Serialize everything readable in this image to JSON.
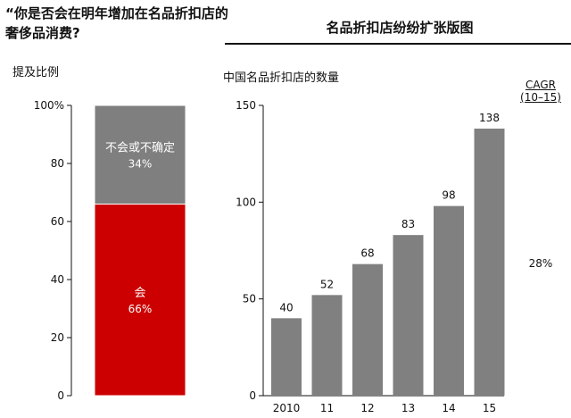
{
  "left_panel": {
    "question": "“你是否会在明年增加在名品折扣店的奢侈品消费?",
    "axis_title": "提及比例",
    "yticks": [
      "100%",
      "80",
      "60",
      "40",
      "20",
      "0"
    ]
  },
  "right_panel": {
    "title": "名品折扣店纷纷扩张版图",
    "subtitle": "中国名品折扣店的数量",
    "cagr_label": "CAGR",
    "cagr_period": "(10–15)",
    "cagr_value": "28%",
    "yticks": [
      "150",
      "100",
      "50",
      "0"
    ]
  },
  "colors": {
    "undecided": "#7f7f7f",
    "will": "#cc0000",
    "bar": "#808080"
  },
  "chart_data": [
    {
      "type": "bar",
      "title": "“你是否会在明年增加在名品折扣店的奢侈品消费?",
      "ylabel": "提及比例",
      "ylim": [
        0,
        100
      ],
      "stacked": true,
      "series": [
        {
          "name": "会",
          "value": 66,
          "label": "66%"
        },
        {
          "name": "不会或不确定",
          "value": 34,
          "label": "34%"
        }
      ]
    },
    {
      "type": "bar",
      "title": "中国名品折扣店的数量",
      "categories": [
        "2010",
        "11",
        "12",
        "13",
        "14",
        "15"
      ],
      "values": [
        40,
        52,
        68,
        83,
        98,
        138
      ],
      "ylim": [
        0,
        150
      ],
      "cagr": "28%"
    }
  ]
}
